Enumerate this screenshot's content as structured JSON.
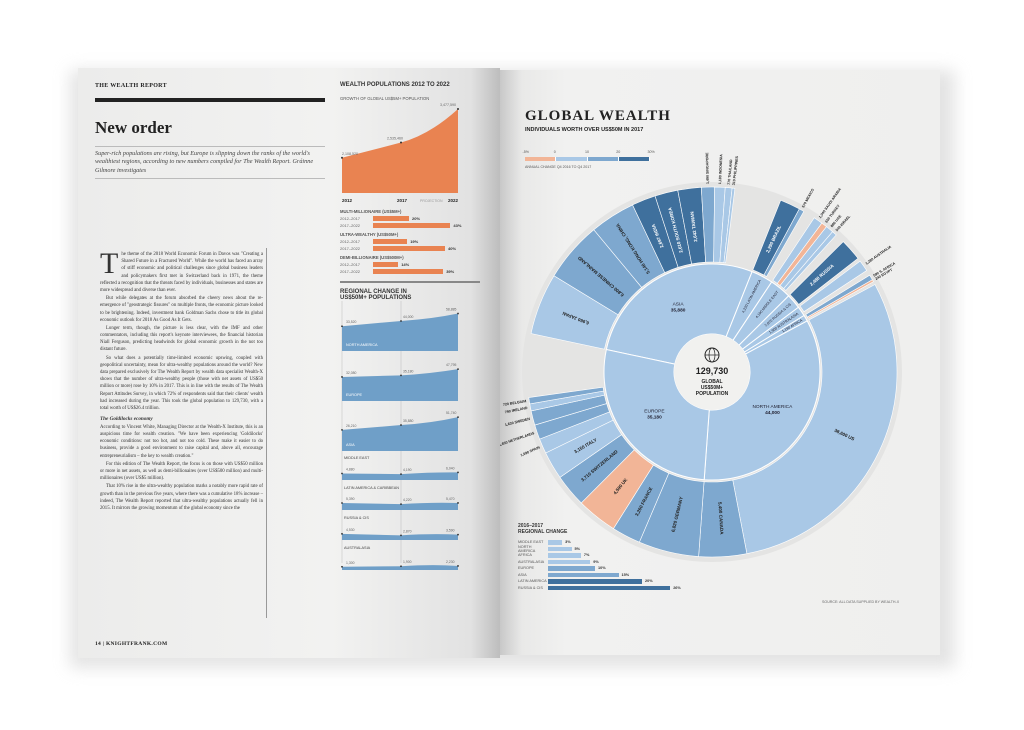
{
  "left_page": {
    "kicker": "THE WEALTH REPORT",
    "title": "New order",
    "standfirst": "Super-rich populations are rising, but Europe is slipping down the ranks of the world's wealthiest regions, according to new numbers compiled for The Wealth Report. Gráinne Gilmore investigates",
    "drop_cap": "T",
    "paragraphs": [
      "he theme of the 2018 World Economic Forum in Davos was \"Creating a Shared Future in a Fractured World\". While the world has faced an array of stiff economic and political challenges since global business leaders and policymakers first met in Switzerland back in 1971, the theme reflected a recognition that the threats faced by individuals, businesses and states are more widespread and diverse than ever.",
      "But while delegates at the forum absorbed the cheery news about the re-emergence of \"geostrategic fissures\" on multiple fronts, the economic picture looked to be brightening. Indeed, investment bank Goldman Sachs chose to title its global economic outlook for 2018 As Good As It Gets.",
      "Longer term, though, the picture is less clear, with the IMF and other commentators, including this report's keynote interviewees, the financial historian Niall Ferguson, predicting headwinds for global economic growth in the not too distant future.",
      "So what does a potentially time-limited economic upswing, coupled with geopolitical uncertainty, mean for ultra-wealthy populations around the world? New data prepared exclusively for The Wealth Report by wealth data specialist Wealth-X shows that the number of ultra-wealthy people (those with net assets of US$50 million or more) rose by 10% in 2017. This is in line with the results of The Wealth Report Attitudes Survey, in which 72% of respondents said that their clients' wealth had increased during the year. This took the global population to 129,730, with a total worth of US$26.4 trillion."
    ],
    "subhead": "The Goldilocks economy",
    "paragraphs2": [
      "According to Vincent White, Managing Director at the Wealth-X Institute, this is an auspicious time for wealth creation. \"We have been experiencing 'Goldilocks' economic conditions: not too hot, and not too cold. These make it easier to do business, provide a good environment to raise capital and, above all, encourage entrepreneurialism – the key to wealth creation.\"",
      "For this edition of The Wealth Report, the focus is on those with US$50 million or more in net assets, as well as demi-billionaires (over US$500 million) and multi-millionaires (over US$5 million).",
      "That 10% rise in the ultra-wealthy population marks a notably more rapid rate of growth than in the previous five years, where there was a cumulative 18% increase – indeed, The Wealth Report reported that ultra-wealthy populations actually fell in 2015. It mirrors the growing momentum of the global economy since the"
    ],
    "footer": "14  |  KNIGHTFRANK.COM"
  },
  "wealth_populations": {
    "title": "WEALTH POPULATIONS 2012 TO 2022",
    "growth": {
      "title": "GROWTH OF GLOBAL US$5M+ POPULATION",
      "years": [
        "2012",
        "2017",
        "2022"
      ],
      "labels": [
        "2,108,520",
        "2,535,460",
        "3,477,590"
      ],
      "values": [
        2108520,
        2535460,
        3477590
      ],
      "projection_label": "PROJECTION",
      "color": "#e98351"
    },
    "groups": [
      {
        "name": "MULTI-MILLIONAIRE (US$5M+)",
        "rows": [
          {
            "period": "2012–2017",
            "value": 20,
            "label": "20%"
          },
          {
            "period": "2017–2022",
            "value": 43,
            "label": "43%"
          }
        ]
      },
      {
        "name": "ULTRA-WEALTHY (US$50M+)",
        "rows": [
          {
            "period": "2012–2017",
            "value": 19,
            "label": "19%"
          },
          {
            "period": "2017–2022",
            "value": 40,
            "label": "40%"
          }
        ]
      },
      {
        "name": "DEMI-BILLIONAIRE (US$500M+)",
        "rows": [
          {
            "period": "2012–2017",
            "value": 14,
            "label": "14%"
          },
          {
            "period": "2017–2022",
            "value": 39,
            "label": "39%"
          }
        ]
      }
    ]
  },
  "regional_populations": {
    "title": "REGIONAL CHANGE IN US$50M+ POPULATIONS",
    "years": [
      "2012",
      "2017",
      "2022"
    ],
    "projection_label": "PROJECTION",
    "regions": [
      {
        "name": "NORTH AMERICA",
        "values": [
          33520,
          44000,
          58885
        ],
        "labels": [
          "33,520",
          "44,000",
          "58,885"
        ]
      },
      {
        "name": "EUROPE",
        "values": [
          32080,
          35180,
          47795
        ],
        "labels": [
          "32,080",
          "35,180",
          "47,795"
        ]
      },
      {
        "name": "ASIA",
        "values": [
          26210,
          35880,
          51740
        ],
        "labels": [
          "26,210",
          "35,880",
          "51,740"
        ]
      },
      {
        "name": "MIDDLE EAST",
        "values": [
          4880,
          4190,
          6040
        ],
        "labels": [
          "4,880",
          "4,190",
          "6,040"
        ]
      },
      {
        "name": "LATIN AMERICA & CARIBBEAN",
        "values": [
          5390,
          4220,
          5470
        ],
        "labels": [
          "5,390",
          "4,220",
          "5,470"
        ]
      },
      {
        "name": "RUSSIA & CIS",
        "values": [
          4530,
          2870,
          3590
        ],
        "labels": [
          "4,530",
          "2,870",
          "3,590"
        ]
      },
      {
        "name": "AUSTRALASIA",
        "values": [
          1300,
          1900,
          2230
        ],
        "labels": [
          "1,300",
          "1,900",
          "2,230"
        ]
      },
      {
        "name": "AFRICA",
        "values": [
          1200,
          1190,
          1560
        ],
        "labels": [
          "1,200",
          "1,190",
          "1,560"
        ]
      }
    ]
  },
  "global_wealth": {
    "title": "GLOBAL WEALTH",
    "subtitle": "INDIVIDUALS WORTH OVER US$50M IN 2017",
    "legend": {
      "ticks": [
        "-5%",
        "0",
        "10",
        "20",
        "30%"
      ],
      "caption": "ANNUAL CHANGE Q4 2016 TO Q4 2017",
      "colors": [
        "#f2b597",
        "#a9c8e6",
        "#7ea8cf",
        "#3f709d"
      ]
    },
    "center": {
      "value": "129,730",
      "line1": "GLOBAL",
      "line2": "US$50M+",
      "line3": "POPULATION",
      "icon": "globe-icon"
    },
    "regions": [
      {
        "name": "ASIA",
        "label": "35,880",
        "value": 35880,
        "bucket": 2,
        "countries": [
          {
            "name": "JAPAN",
            "label": "6,960",
            "value": 6960,
            "bucket": 1
          },
          {
            "name": "CHINESE MAINLAND",
            "label": "6,800",
            "value": 6800,
            "bucket": 2
          },
          {
            "name": "HONG KONG, CHINA",
            "label": "5,140",
            "value": 5140,
            "bucket": 2
          },
          {
            "name": "INDIA",
            "label": "2,697",
            "value": 2697,
            "bucket": 3
          },
          {
            "name": "SOUTH KOREA",
            "label": "2,610",
            "value": 2610,
            "bucket": 3
          },
          {
            "name": "TAIWAN",
            "label": "2,642",
            "value": 2642,
            "bucket": 3
          },
          {
            "name": "SINGAPORE",
            "label": "1,490",
            "value": 1490,
            "bucket": 2
          },
          {
            "name": "INDONESIA",
            "label": "1,180",
            "value": 1180,
            "bucket": 1
          },
          {
            "name": "THAILAND",
            "label": "770",
            "value": 770,
            "bucket": 1
          },
          {
            "name": "PHILIPPINES",
            "label": "310",
            "value": 310,
            "bucket": 1
          }
        ]
      },
      {
        "name": "LATIN AMERICA",
        "label": "4,220",
        "value": 4220,
        "bucket": 3,
        "countries": [
          {
            "name": "BRAZIL",
            "label": "2,290",
            "value": 2290,
            "bucket": 3
          },
          {
            "name": "MEXICO",
            "label": "570",
            "value": 570,
            "bucket": 2
          }
        ]
      },
      {
        "name": "MIDDLE EAST",
        "label": "4,190",
        "value": 4190,
        "bucket": 1,
        "countries": [
          {
            "name": "SAUDI ARABIA",
            "label": "1,040",
            "value": 1040,
            "bucket": 1
          },
          {
            "name": "TURKEY",
            "label": "650",
            "value": 650,
            "bucket": 0
          },
          {
            "name": "UAE",
            "label": "880",
            "value": 880,
            "bucket": 1
          },
          {
            "name": "ISRAEL",
            "label": "540",
            "value": 540,
            "bucket": 1
          }
        ]
      },
      {
        "name": "RUSSIA & CIS",
        "label": "2,870",
        "value": 2870,
        "bucket": 3,
        "countries": [
          {
            "name": "RUSSIA",
            "label": "2,480",
            "value": 2480,
            "bucket": 3
          }
        ]
      },
      {
        "name": "AUSTRALASIA",
        "label": "1,900",
        "value": 1900,
        "bucket": 1,
        "countries": [
          {
            "name": "AUSTRALIA",
            "label": "1,280",
            "value": 1280,
            "bucket": 1
          }
        ]
      },
      {
        "name": "AFRICA",
        "label": "1,190",
        "value": 1190,
        "bucket": 1,
        "countries": [
          {
            "name": "S. AFRICA",
            "label": "590",
            "value": 590,
            "bucket": 2
          },
          {
            "name": "EGYPT",
            "label": "240",
            "value": 240,
            "bucket": 0
          }
        ]
      },
      {
        "name": "NORTH AMERICA",
        "label": "44,000",
        "value": 44000,
        "bucket": 1,
        "countries": [
          {
            "name": "US",
            "label": "38,600",
            "value": 38600,
            "bucket": 1
          },
          {
            "name": "CANADA",
            "label": "5,400",
            "value": 5400,
            "bucket": 2
          }
        ]
      },
      {
        "name": "EUROPE",
        "label": "35,180",
        "value": 35180,
        "bucket": 1,
        "countries": [
          {
            "name": "GERMANY",
            "label": "6,820",
            "value": 6820,
            "bucket": 2
          },
          {
            "name": "FRANCE",
            "label": "3,260",
            "value": 3260,
            "bucket": 2
          },
          {
            "name": "UK",
            "label": "4,590",
            "value": 4590,
            "bucket": 0
          },
          {
            "name": "SWITZERLAND",
            "label": "3,710",
            "value": 3710,
            "bucket": 2
          },
          {
            "name": "ITALY",
            "label": "3,150",
            "value": 3150,
            "bucket": 1
          },
          {
            "name": "SPAIN",
            "label": "1,690",
            "value": 1690,
            "bucket": 1
          },
          {
            "name": "NETHERLANDS",
            "label": "1,650",
            "value": 1650,
            "bucket": 2
          },
          {
            "name": "SWEDEN",
            "label": "1,630",
            "value": 1630,
            "bucket": 2
          },
          {
            "name": "IRELAND",
            "label": "790",
            "value": 790,
            "bucket": 1
          },
          {
            "name": "BELGIUM",
            "label": "720",
            "value": 720,
            "bucket": 2
          }
        ]
      }
    ]
  },
  "regional_change": {
    "title_line1": "2016–2017",
    "title_line2": "REGIONAL CHANGE",
    "rows": [
      {
        "name": "MIDDLE EAST",
        "value": 3,
        "label": "3%",
        "bucket": 1
      },
      {
        "name": "NORTH AMERICA",
        "value": 5,
        "label": "5%",
        "bucket": 1
      },
      {
        "name": "AFRICA",
        "value": 7,
        "label": "7%",
        "bucket": 1
      },
      {
        "name": "AUSTRALASIA",
        "value": 9,
        "label": "9%",
        "bucket": 1
      },
      {
        "name": "EUROPE",
        "value": 10,
        "label": "10%",
        "bucket": 2
      },
      {
        "name": "ASIA",
        "value": 15,
        "label": "15%",
        "bucket": 2
      },
      {
        "name": "LATIN AMERICA",
        "value": 20,
        "label": "20%",
        "bucket": 3
      },
      {
        "name": "RUSSIA & CIS",
        "value": 26,
        "label": "26%",
        "bucket": 3
      }
    ]
  },
  "source": "SOURCE: ALL DATA SUPPLIED BY WEALTH-X"
}
